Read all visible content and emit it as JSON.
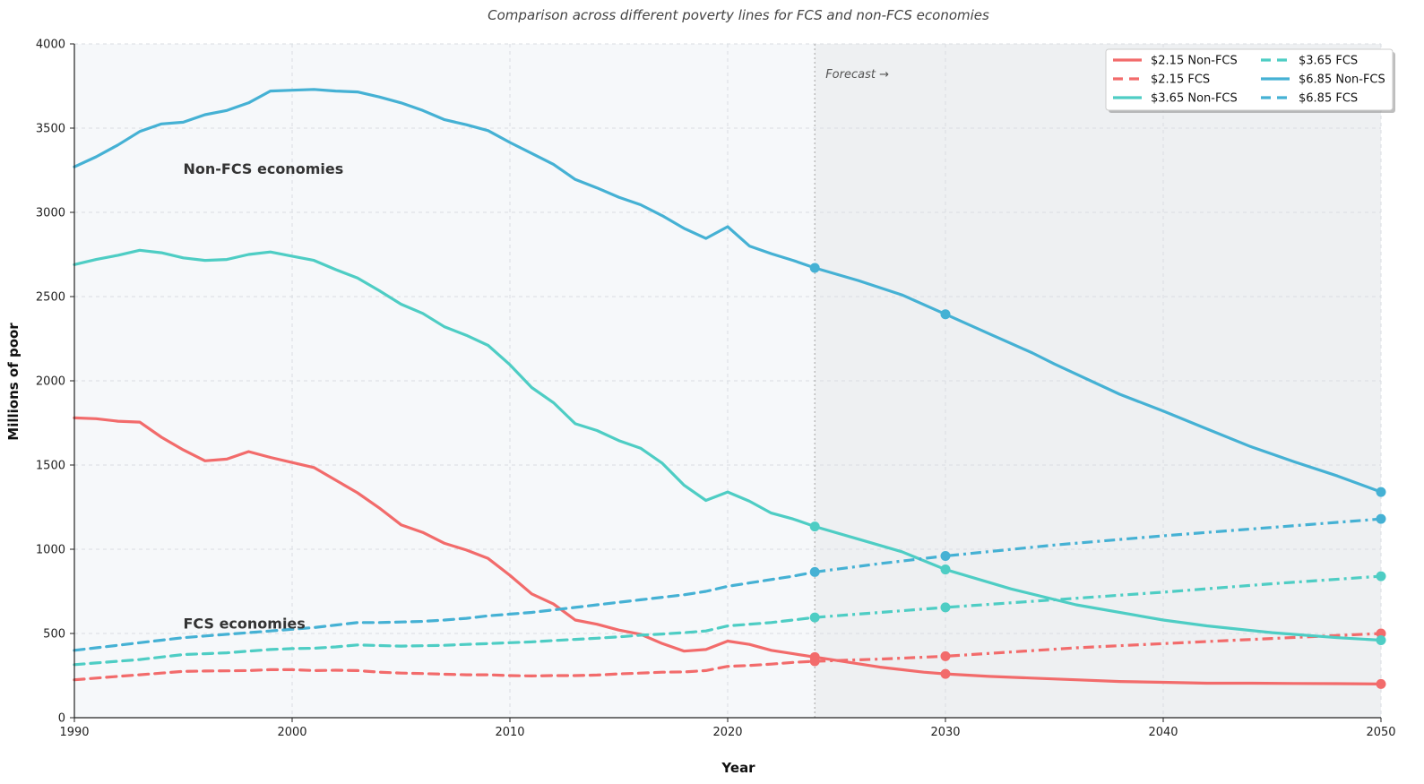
{
  "chart_data": {
    "type": "line",
    "title": "Comparison across different poverty lines for FCS and non-FCS economies",
    "xlabel": "Year",
    "ylabel": "Millions of poor",
    "xlim": [
      1990,
      2050
    ],
    "ylim": [
      0,
      4000
    ],
    "xticks": [
      1990,
      2000,
      2010,
      2020,
      2030,
      2040,
      2050
    ],
    "yticks": [
      0,
      500,
      1000,
      1500,
      2000,
      2500,
      3000,
      3500,
      4000
    ],
    "grid": true,
    "legend_position": "top-right",
    "forecast_start": 2024,
    "forecast_label": "Forecast →",
    "annotations": [
      {
        "text": "Non-FCS economies",
        "x": 1995,
        "y": 3230
      },
      {
        "text": "FCS economies",
        "x": 1995,
        "y": 530
      }
    ],
    "colors": {
      "$2.15": "#f26b6b",
      "$3.65": "#4ecdc4",
      "$6.85": "#45b1d4"
    },
    "series": [
      {
        "name": "$2.15 Non-FCS",
        "line": "$2.15",
        "group": "Non-FCS",
        "historical": [
          [
            1990,
            1780
          ],
          [
            1991,
            1775
          ],
          [
            1992,
            1760
          ],
          [
            1993,
            1755
          ],
          [
            1994,
            1665
          ],
          [
            1995,
            1590
          ],
          [
            1996,
            1525
          ],
          [
            1997,
            1535
          ],
          [
            1998,
            1580
          ],
          [
            1999,
            1545
          ],
          [
            2000,
            1515
          ],
          [
            2001,
            1485
          ],
          [
            2002,
            1410
          ],
          [
            2003,
            1335
          ],
          [
            2004,
            1245
          ],
          [
            2005,
            1145
          ],
          [
            2006,
            1100
          ],
          [
            2007,
            1035
          ],
          [
            2008,
            995
          ],
          [
            2009,
            945
          ],
          [
            2010,
            845
          ],
          [
            2011,
            735
          ],
          [
            2012,
            675
          ],
          [
            2013,
            580
          ],
          [
            2014,
            555
          ],
          [
            2015,
            520
          ],
          [
            2016,
            495
          ],
          [
            2017,
            440
          ],
          [
            2018,
            395
          ],
          [
            2019,
            405
          ],
          [
            2020,
            455
          ],
          [
            2021,
            435
          ],
          [
            2022,
            400
          ],
          [
            2023,
            380
          ],
          [
            2024,
            360
          ]
        ],
        "forecast": [
          [
            2024,
            360
          ],
          [
            2025,
            340
          ],
          [
            2026,
            320
          ],
          [
            2027,
            300
          ],
          [
            2028,
            285
          ],
          [
            2029,
            270
          ],
          [
            2030,
            260
          ],
          [
            2032,
            245
          ],
          [
            2034,
            235
          ],
          [
            2036,
            225
          ],
          [
            2038,
            215
          ],
          [
            2040,
            210
          ],
          [
            2042,
            205
          ],
          [
            2044,
            205
          ],
          [
            2046,
            203
          ],
          [
            2048,
            202
          ],
          [
            2050,
            200
          ]
        ],
        "markers": [
          [
            2024,
            360
          ],
          [
            2030,
            260
          ],
          [
            2050,
            200
          ]
        ]
      },
      {
        "name": "$2.15 FCS",
        "line": "$2.15",
        "group": "FCS",
        "historical": [
          [
            1990,
            225
          ],
          [
            1991,
            235
          ],
          [
            1992,
            245
          ],
          [
            1993,
            255
          ],
          [
            1994,
            265
          ],
          [
            1995,
            275
          ],
          [
            1996,
            277
          ],
          [
            1997,
            278
          ],
          [
            1998,
            280
          ],
          [
            1999,
            285
          ],
          [
            2000,
            285
          ],
          [
            2001,
            280
          ],
          [
            2002,
            282
          ],
          [
            2003,
            280
          ],
          [
            2004,
            270
          ],
          [
            2005,
            265
          ],
          [
            2006,
            262
          ],
          [
            2007,
            258
          ],
          [
            2008,
            255
          ],
          [
            2009,
            255
          ],
          [
            2010,
            250
          ],
          [
            2011,
            248
          ],
          [
            2012,
            250
          ],
          [
            2013,
            250
          ],
          [
            2014,
            253
          ],
          [
            2015,
            260
          ],
          [
            2016,
            265
          ],
          [
            2017,
            270
          ],
          [
            2018,
            272
          ],
          [
            2019,
            280
          ],
          [
            2020,
            305
          ],
          [
            2021,
            310
          ],
          [
            2022,
            318
          ],
          [
            2023,
            328
          ],
          [
            2024,
            335
          ]
        ],
        "forecast": [
          [
            2024,
            335
          ],
          [
            2027,
            348
          ],
          [
            2030,
            365
          ],
          [
            2033,
            390
          ],
          [
            2036,
            415
          ],
          [
            2040,
            440
          ],
          [
            2045,
            470
          ],
          [
            2050,
            500
          ]
        ],
        "markers": [
          [
            2024,
            335
          ],
          [
            2030,
            365
          ],
          [
            2050,
            500
          ]
        ]
      },
      {
        "name": "$3.65 Non-FCS",
        "line": "$3.65",
        "group": "Non-FCS",
        "historical": [
          [
            1990,
            2690
          ],
          [
            1991,
            2720
          ],
          [
            1992,
            2745
          ],
          [
            1993,
            2775
          ],
          [
            1994,
            2760
          ],
          [
            1995,
            2730
          ],
          [
            1996,
            2715
          ],
          [
            1997,
            2720
          ],
          [
            1998,
            2750
          ],
          [
            1999,
            2765
          ],
          [
            2000,
            2740
          ],
          [
            2001,
            2715
          ],
          [
            2002,
            2660
          ],
          [
            2003,
            2610
          ],
          [
            2004,
            2535
          ],
          [
            2005,
            2455
          ],
          [
            2006,
            2400
          ],
          [
            2007,
            2320
          ],
          [
            2008,
            2270
          ],
          [
            2009,
            2210
          ],
          [
            2010,
            2095
          ],
          [
            2011,
            1960
          ],
          [
            2012,
            1870
          ],
          [
            2013,
            1745
          ],
          [
            2014,
            1705
          ],
          [
            2015,
            1645
          ],
          [
            2016,
            1600
          ],
          [
            2017,
            1510
          ],
          [
            2018,
            1380
          ],
          [
            2019,
            1290
          ],
          [
            2020,
            1340
          ],
          [
            2021,
            1285
          ],
          [
            2022,
            1215
          ],
          [
            2023,
            1180
          ],
          [
            2024,
            1135
          ]
        ],
        "forecast": [
          [
            2024,
            1135
          ],
          [
            2026,
            1060
          ],
          [
            2028,
            985
          ],
          [
            2030,
            880
          ],
          [
            2033,
            765
          ],
          [
            2036,
            670
          ],
          [
            2040,
            580
          ],
          [
            2042,
            545
          ],
          [
            2045,
            505
          ],
          [
            2048,
            475
          ],
          [
            2050,
            460
          ]
        ],
        "markers": [
          [
            2024,
            1135
          ],
          [
            2030,
            880
          ],
          [
            2050,
            460
          ]
        ]
      },
      {
        "name": "$3.65 FCS",
        "line": "$3.65",
        "group": "FCS",
        "historical": [
          [
            1990,
            315
          ],
          [
            1991,
            325
          ],
          [
            1992,
            335
          ],
          [
            1993,
            345
          ],
          [
            1994,
            360
          ],
          [
            1995,
            375
          ],
          [
            1996,
            380
          ],
          [
            1997,
            385
          ],
          [
            1998,
            395
          ],
          [
            1999,
            405
          ],
          [
            2000,
            410
          ],
          [
            2001,
            412
          ],
          [
            2002,
            420
          ],
          [
            2003,
            432
          ],
          [
            2004,
            428
          ],
          [
            2005,
            425
          ],
          [
            2006,
            427
          ],
          [
            2007,
            430
          ],
          [
            2008,
            435
          ],
          [
            2009,
            440
          ],
          [
            2010,
            445
          ],
          [
            2011,
            450
          ],
          [
            2012,
            458
          ],
          [
            2013,
            465
          ],
          [
            2014,
            472
          ],
          [
            2015,
            480
          ],
          [
            2016,
            490
          ],
          [
            2017,
            497
          ],
          [
            2018,
            505
          ],
          [
            2019,
            515
          ],
          [
            2020,
            545
          ],
          [
            2021,
            555
          ],
          [
            2022,
            565
          ],
          [
            2023,
            580
          ],
          [
            2024,
            595
          ]
        ],
        "forecast": [
          [
            2024,
            595
          ],
          [
            2027,
            625
          ],
          [
            2030,
            655
          ],
          [
            2035,
            700
          ],
          [
            2040,
            745
          ],
          [
            2045,
            795
          ],
          [
            2050,
            840
          ]
        ],
        "markers": [
          [
            2024,
            595
          ],
          [
            2030,
            655
          ],
          [
            2050,
            840
          ]
        ]
      },
      {
        "name": "$6.85 Non-FCS",
        "line": "$6.85",
        "group": "Non-FCS",
        "historical": [
          [
            1990,
            3270
          ],
          [
            1991,
            3330
          ],
          [
            1992,
            3400
          ],
          [
            1993,
            3480
          ],
          [
            1994,
            3525
          ],
          [
            1995,
            3535
          ],
          [
            1996,
            3580
          ],
          [
            1997,
            3605
          ],
          [
            1998,
            3650
          ],
          [
            1999,
            3720
          ],
          [
            2000,
            3725
          ],
          [
            2001,
            3730
          ],
          [
            2002,
            3720
          ],
          [
            2003,
            3715
          ],
          [
            2004,
            3685
          ],
          [
            2005,
            3650
          ],
          [
            2006,
            3605
          ],
          [
            2007,
            3550
          ],
          [
            2008,
            3520
          ],
          [
            2009,
            3485
          ],
          [
            2010,
            3415
          ],
          [
            2011,
            3350
          ],
          [
            2012,
            3285
          ],
          [
            2013,
            3195
          ],
          [
            2014,
            3145
          ],
          [
            2015,
            3090
          ],
          [
            2016,
            3045
          ],
          [
            2017,
            2980
          ],
          [
            2018,
            2905
          ],
          [
            2019,
            2845
          ],
          [
            2020,
            2915
          ],
          [
            2021,
            2800
          ],
          [
            2022,
            2755
          ],
          [
            2023,
            2715
          ],
          [
            2024,
            2670
          ]
        ],
        "forecast": [
          [
            2024,
            2670
          ],
          [
            2026,
            2595
          ],
          [
            2028,
            2510
          ],
          [
            2030,
            2395
          ],
          [
            2032,
            2280
          ],
          [
            2034,
            2165
          ],
          [
            2035,
            2100
          ],
          [
            2038,
            1920
          ],
          [
            2040,
            1820
          ],
          [
            2042,
            1715
          ],
          [
            2044,
            1610
          ],
          [
            2046,
            1520
          ],
          [
            2048,
            1435
          ],
          [
            2050,
            1340
          ]
        ],
        "markers": [
          [
            2024,
            2670
          ],
          [
            2030,
            2395
          ],
          [
            2050,
            1340
          ]
        ]
      },
      {
        "name": "$6.85 FCS",
        "line": "$6.85",
        "group": "FCS",
        "historical": [
          [
            1990,
            400
          ],
          [
            1991,
            415
          ],
          [
            1992,
            430
          ],
          [
            1993,
            445
          ],
          [
            1994,
            460
          ],
          [
            1995,
            475
          ],
          [
            1996,
            485
          ],
          [
            1997,
            495
          ],
          [
            1998,
            505
          ],
          [
            1999,
            515
          ],
          [
            2000,
            525
          ],
          [
            2001,
            535
          ],
          [
            2002,
            550
          ],
          [
            2003,
            565
          ],
          [
            2004,
            565
          ],
          [
            2005,
            568
          ],
          [
            2006,
            572
          ],
          [
            2007,
            580
          ],
          [
            2008,
            590
          ],
          [
            2009,
            605
          ],
          [
            2010,
            615
          ],
          [
            2011,
            625
          ],
          [
            2012,
            640
          ],
          [
            2013,
            655
          ],
          [
            2014,
            670
          ],
          [
            2015,
            685
          ],
          [
            2016,
            700
          ],
          [
            2017,
            715
          ],
          [
            2018,
            730
          ],
          [
            2019,
            750
          ],
          [
            2020,
            780
          ],
          [
            2021,
            800
          ],
          [
            2022,
            820
          ],
          [
            2023,
            840
          ],
          [
            2024,
            865
          ]
        ],
        "forecast": [
          [
            2024,
            865
          ],
          [
            2027,
            915
          ],
          [
            2030,
            960
          ],
          [
            2035,
            1025
          ],
          [
            2040,
            1080
          ],
          [
            2045,
            1130
          ],
          [
            2050,
            1180
          ]
        ],
        "markers": [
          [
            2024,
            865
          ],
          [
            2030,
            960
          ],
          [
            2050,
            1180
          ]
        ]
      }
    ]
  }
}
